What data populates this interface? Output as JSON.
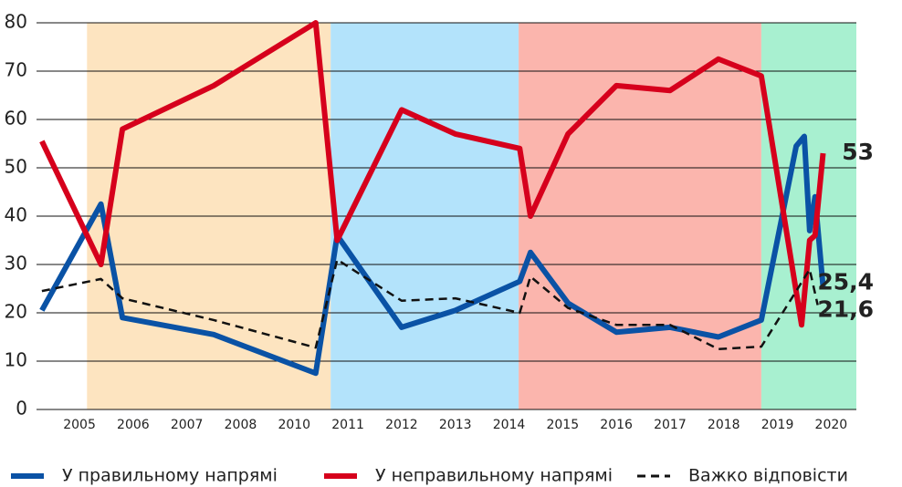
{
  "chart_data": {
    "type": "line",
    "xlim": [
      2004.2,
      2020.47
    ],
    "ylim": [
      0,
      80
    ],
    "yticks": [
      0,
      10,
      20,
      30,
      40,
      50,
      60,
      70,
      80
    ],
    "xticks": [
      2005,
      2006,
      2007,
      2008,
      2010,
      2011,
      2012,
      2013,
      2014,
      2015,
      2016,
      2017,
      2018,
      2019,
      2020
    ],
    "grid": true,
    "legend": "bottom",
    "bands": [
      {
        "from": 2005.14,
        "to": 2010.68,
        "color": "#fde4c0"
      },
      {
        "from": 2010.68,
        "to": 2014.18,
        "color": "#b3e3fb"
      },
      {
        "from": 2014.18,
        "to": 2018.7,
        "color": "#fbb5ad"
      },
      {
        "from": 2018.7,
        "to": 2020.47,
        "color": "#a8f0d0"
      }
    ],
    "series": [
      {
        "name": "У правильному напрямі",
        "color": "#0a52a5",
        "style": "solid",
        "x": [
          2004.3,
          2005.4,
          2005.8,
          2007.5,
          2010.4,
          2010.8,
          2012.0,
          2013.0,
          2014.2,
          2014.4,
          2015.1,
          2016.0,
          2017.0,
          2017.9,
          2018.7,
          2019.35,
          2019.5,
          2019.6,
          2019.7,
          2019.85
        ],
        "values": [
          20.5,
          42.5,
          19,
          15.5,
          7.5,
          36,
          17,
          20.5,
          26.5,
          32.5,
          22,
          16,
          17,
          15,
          18.5,
          54.5,
          56.5,
          37,
          44,
          25.4
        ],
        "value_labels": [
          null,
          null,
          null,
          null,
          null,
          null,
          null,
          null,
          null,
          null,
          null,
          null,
          null,
          null,
          null,
          null,
          null,
          null,
          null,
          "25,4"
        ]
      },
      {
        "name": "У неправильному напрямі",
        "color": "#d6001c",
        "style": "solid",
        "x": [
          2004.3,
          2005.4,
          2005.8,
          2007.5,
          2010.4,
          2010.8,
          2012.0,
          2013.0,
          2014.2,
          2014.4,
          2015.1,
          2016.0,
          2017.0,
          2017.9,
          2018.7,
          2019.45,
          2019.6,
          2019.7,
          2019.85
        ],
        "values": [
          55.5,
          30,
          58,
          67,
          80,
          35,
          62,
          57,
          54,
          40,
          57,
          67,
          66,
          72.5,
          69,
          17.5,
          35,
          36,
          53
        ],
        "value_labels": [
          null,
          null,
          null,
          null,
          null,
          null,
          null,
          null,
          null,
          null,
          null,
          null,
          null,
          null,
          null,
          null,
          null,
          null,
          "53"
        ]
      },
      {
        "name": "Важко відповісти",
        "color": "#111111",
        "style": "dashed",
        "x": [
          2004.3,
          2005.4,
          2005.8,
          2007.5,
          2010.4,
          2010.8,
          2012.0,
          2013.0,
          2014.2,
          2014.4,
          2015.1,
          2016.0,
          2017.0,
          2017.9,
          2018.7,
          2019.35,
          2019.6,
          2019.75
        ],
        "values": [
          24.5,
          27,
          23,
          18.5,
          12.8,
          31,
          22.5,
          23,
          20,
          27.5,
          21,
          17.5,
          17.5,
          12.5,
          13,
          24.5,
          29,
          21.6
        ],
        "value_labels": [
          null,
          null,
          null,
          null,
          null,
          null,
          null,
          null,
          null,
          null,
          null,
          null,
          null,
          null,
          null,
          null,
          null,
          "21,6"
        ]
      }
    ]
  }
}
